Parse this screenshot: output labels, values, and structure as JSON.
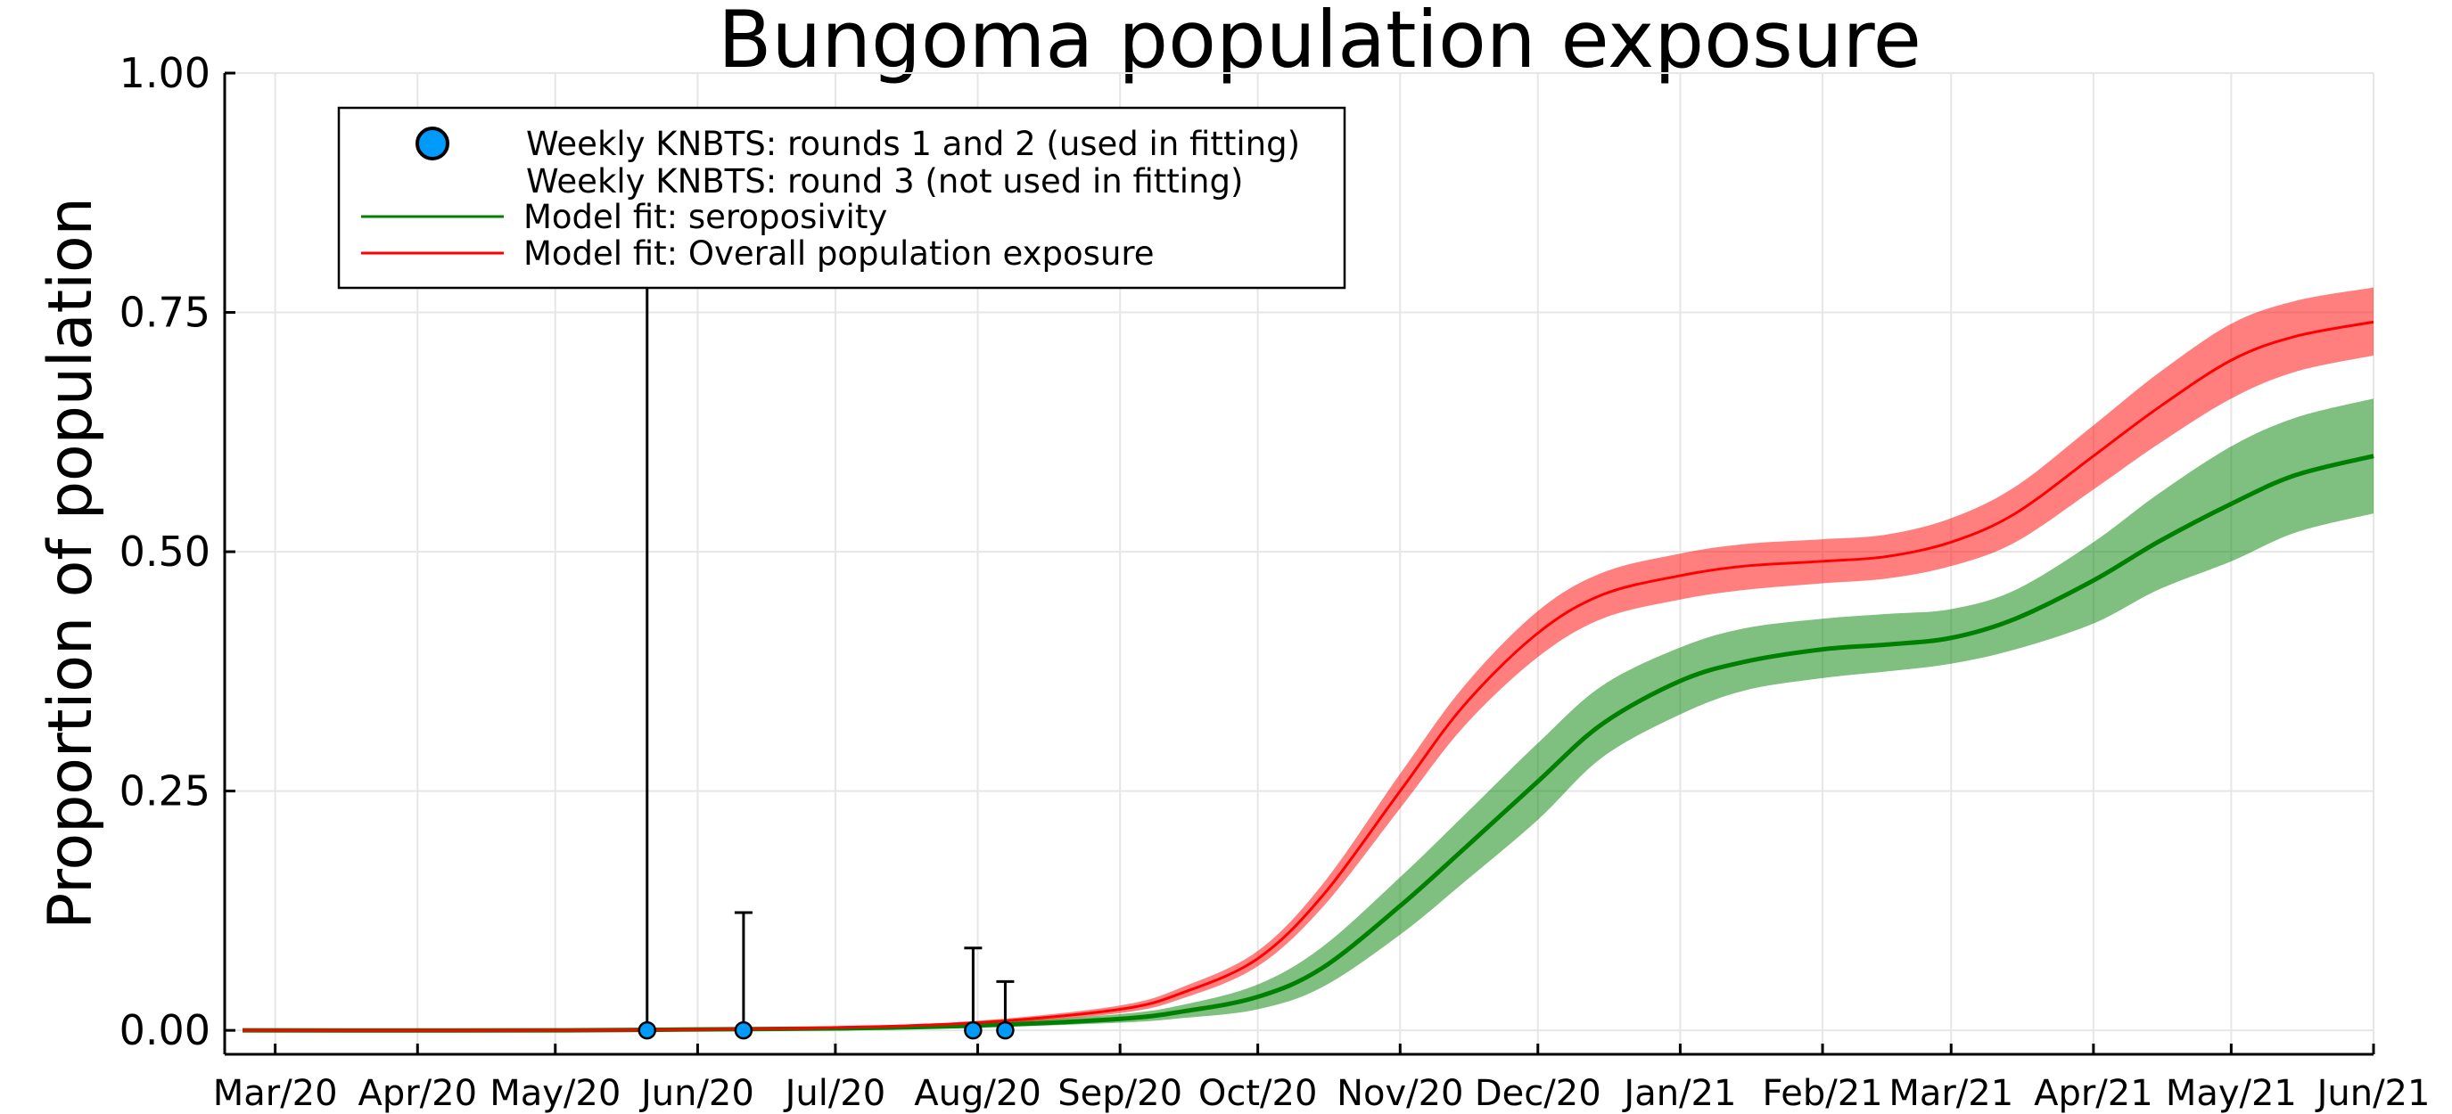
{
  "chart_data": {
    "type": "line",
    "title": "Bungoma population exposure",
    "xlabel": "",
    "ylabel": "Proportion of population",
    "xlim": [
      "2020-02-19",
      "2021-06-01"
    ],
    "ylim": [
      -0.025,
      1.0
    ],
    "yticks": [
      0.0,
      0.25,
      0.5,
      0.75,
      1.0
    ],
    "ytick_labels": [
      "0.00",
      "0.25",
      "0.50",
      "0.75",
      "1.00"
    ],
    "xticks": [
      "2020-03-01",
      "2020-04-01",
      "2020-05-01",
      "2020-06-01",
      "2020-07-01",
      "2020-08-01",
      "2020-09-01",
      "2020-10-01",
      "2020-11-01",
      "2020-12-01",
      "2021-01-01",
      "2021-02-01",
      "2021-03-01",
      "2021-04-01",
      "2021-05-01",
      "2021-06-01"
    ],
    "xtick_labels": [
      "Mar/20",
      "Apr/20",
      "May/20",
      "Jun/20",
      "Jul/20",
      "Aug/20",
      "Sep/20",
      "Oct/20",
      "Nov/20",
      "Dec/20",
      "Jan/21",
      "Feb/21",
      "Mar/21",
      "Apr/21",
      "May/21",
      "Jun/21"
    ],
    "grid": true,
    "legend_position": "top-left",
    "legend": [
      {
        "label": "Weekly KNBTS: rounds 1 and 2 (used in fitting)",
        "marker": "circle",
        "color": "#009AFA"
      },
      {
        "label": "Weekly KNBTS: round 3 (not used in fitting)",
        "marker": "none",
        "color": "#E26F46"
      },
      {
        "label": "Model fit: seroposivity",
        "marker": "line",
        "color": "#008000"
      },
      {
        "label": "Model fit: Overall population exposure",
        "marker": "line",
        "color": "#FF0000"
      }
    ],
    "observations": [
      {
        "date": "2020-05-21",
        "value": 0.0,
        "upper": 0.95
      },
      {
        "date": "2020-06-11",
        "value": 0.0,
        "upper": 0.123
      },
      {
        "date": "2020-07-31",
        "value": 0.0,
        "upper": 0.086
      },
      {
        "date": "2020-08-07",
        "value": 0.0,
        "upper": 0.051
      }
    ],
    "series": [
      {
        "name": "Model fit: seroposivity",
        "color": "#008000",
        "band_opacity": 0.5,
        "x": [
          "2020-02-15",
          "2020-05-01",
          "2020-06-01",
          "2020-07-01",
          "2020-08-01",
          "2020-09-01",
          "2020-09-15",
          "2020-10-01",
          "2020-10-15",
          "2020-11-01",
          "2020-11-15",
          "2020-12-01",
          "2020-12-15",
          "2021-01-01",
          "2021-01-15",
          "2021-02-01",
          "2021-02-15",
          "2021-03-01",
          "2021-03-15",
          "2021-04-01",
          "2021-04-15",
          "2021-05-01",
          "2021-05-15",
          "2021-06-01"
        ],
        "mid": [
          0.0,
          0.0,
          0.001,
          0.002,
          0.005,
          0.012,
          0.02,
          0.035,
          0.065,
          0.13,
          0.19,
          0.26,
          0.32,
          0.365,
          0.385,
          0.398,
          0.403,
          0.41,
          0.43,
          0.47,
          0.51,
          0.55,
          0.58,
          0.6
        ],
        "lower": [
          0.0,
          0.0,
          0.0,
          0.001,
          0.003,
          0.008,
          0.013,
          0.022,
          0.045,
          0.1,
          0.155,
          0.22,
          0.285,
          0.33,
          0.355,
          0.368,
          0.375,
          0.383,
          0.398,
          0.425,
          0.46,
          0.49,
          0.52,
          0.54
        ],
        "upper": [
          0.0,
          0.0,
          0.002,
          0.004,
          0.008,
          0.017,
          0.027,
          0.048,
          0.087,
          0.16,
          0.225,
          0.3,
          0.36,
          0.4,
          0.42,
          0.43,
          0.435,
          0.44,
          0.46,
          0.51,
          0.56,
          0.61,
          0.64,
          0.66
        ]
      },
      {
        "name": "Model fit: Overall population exposure",
        "color": "#FF0000",
        "band_opacity": 0.5,
        "x": [
          "2020-02-15",
          "2020-05-01",
          "2020-06-01",
          "2020-07-01",
          "2020-08-01",
          "2020-09-01",
          "2020-09-15",
          "2020-10-01",
          "2020-10-15",
          "2020-11-01",
          "2020-11-15",
          "2020-12-01",
          "2020-12-15",
          "2021-01-01",
          "2021-01-15",
          "2021-02-01",
          "2021-02-15",
          "2021-03-01",
          "2021-03-15",
          "2021-04-01",
          "2021-04-15",
          "2021-05-01",
          "2021-05-15",
          "2021-06-01"
        ],
        "mid": [
          0.0,
          0.0,
          0.001,
          0.003,
          0.008,
          0.022,
          0.04,
          0.075,
          0.14,
          0.25,
          0.34,
          0.415,
          0.455,
          0.475,
          0.485,
          0.49,
          0.495,
          0.51,
          0.54,
          0.6,
          0.65,
          0.7,
          0.725,
          0.74
        ],
        "lower": [
          0.0,
          0.0,
          0.0,
          0.002,
          0.006,
          0.018,
          0.034,
          0.067,
          0.128,
          0.232,
          0.318,
          0.39,
          0.43,
          0.45,
          0.46,
          0.467,
          0.472,
          0.485,
          0.51,
          0.565,
          0.612,
          0.66,
          0.688,
          0.705
        ],
        "upper": [
          0.0,
          0.0,
          0.002,
          0.004,
          0.01,
          0.026,
          0.046,
          0.083,
          0.152,
          0.268,
          0.36,
          0.438,
          0.478,
          0.498,
          0.508,
          0.513,
          0.518,
          0.535,
          0.568,
          0.632,
          0.686,
          0.738,
          0.762,
          0.776
        ]
      }
    ]
  }
}
